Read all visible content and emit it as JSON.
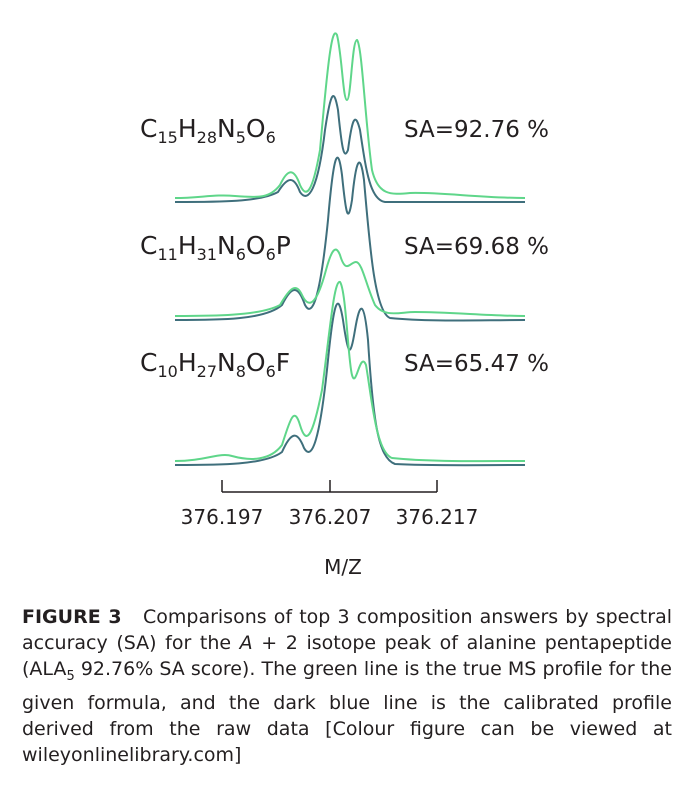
{
  "figure": {
    "traces": [
      {
        "formula": "C15H28N5O6",
        "score": "SA=92.76 %"
      },
      {
        "formula": "C11H31N6O6P",
        "score": "SA=69.68 %"
      },
      {
        "formula": "C10H27N8O6F",
        "score": "SA=65.47 %"
      }
    ],
    "x_ticks": [
      "376.197",
      "376.207",
      "376.217"
    ],
    "x_label": "M/Z"
  },
  "caption": {
    "label": "FIGURE 3",
    "parts": [
      "Comparisons of top 3 composition answers by spectral accuracy (SA) for the ",
      "A",
      " + 2 isotope peak of alanine pentapeptide (ALA",
      "5",
      " 92.76% SA score). The green line is the true MS profile for the given formula, and the dark blue line is the calibrated profile derived from the raw data [Colour figure can be viewed at wileyonlinelibrary.com]"
    ]
  }
}
